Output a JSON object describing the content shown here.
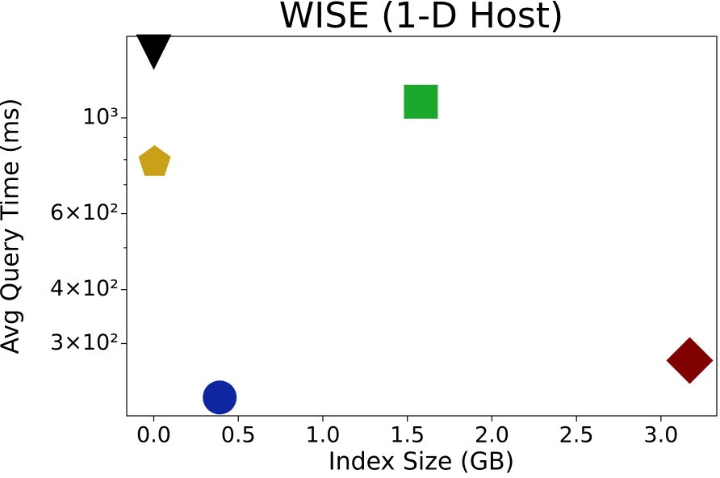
{
  "chart_data": {
    "type": "scatter",
    "title": "WISE (1-D Host)",
    "x_label": "Index Size (GB)",
    "y_label": "Avg Query Time (ms)",
    "x": [
      0.0,
      1.58,
      0.005,
      0.39,
      3.17
    ],
    "values": [
      1420,
      1090,
      790,
      225,
      274
    ],
    "colors": [
      "#000000",
      "#1ca82c",
      "#c9a118",
      "#0e27a0",
      "#800000"
    ],
    "markers": [
      "triangle-down",
      "square",
      "pentagon",
      "circle",
      "diamond"
    ],
    "xlim": [
      -0.16,
      3.33
    ],
    "xticks": [
      {
        "value": 0,
        "label": "0.0"
      },
      0.5,
      {
        "value": 1,
        "label": "1.0"
      },
      1.5,
      {
        "value": 2,
        "label": "2.0"
      },
      2.5,
      {
        "value": 3,
        "label": "3.0"
      }
    ],
    "ylim": [
      204,
      1545
    ],
    "y_scale": "log",
    "yticks": [
      {
        "value": 300,
        "label": "3×10²"
      },
      {
        "value": 400,
        "label": "4×10²"
      },
      {
        "value": 600,
        "label": "6×10²"
      },
      {
        "value": 1000,
        "label": "10³"
      }
    ],
    "yminor_ticks": [
      500,
      700,
      800,
      900
    ]
  }
}
